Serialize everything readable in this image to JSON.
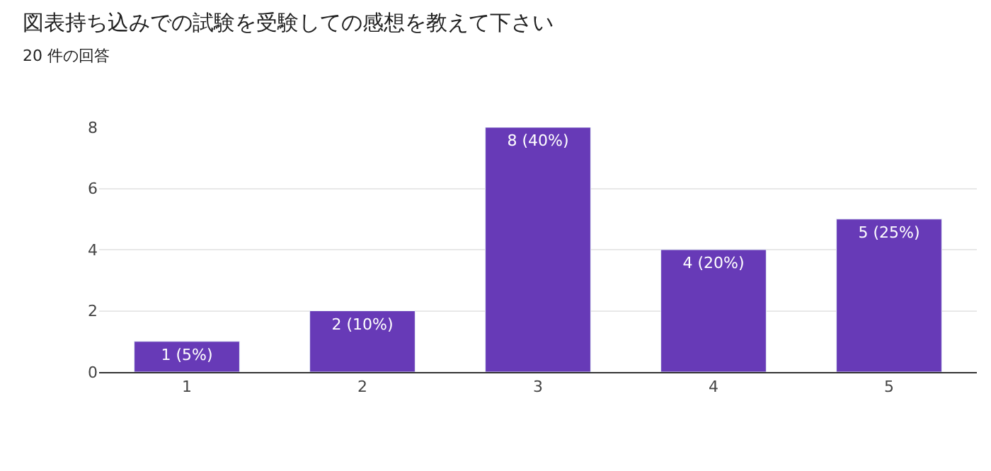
{
  "chart_data": {
    "type": "bar",
    "title": "図表持ち込みでの試験を受験しての感想を教えて下さい",
    "subtitle": "20 件の回答",
    "categories": [
      "1",
      "2",
      "3",
      "4",
      "5"
    ],
    "values": [
      1,
      2,
      8,
      4,
      5
    ],
    "value_labels": [
      "1 (5%)",
      "2 (10%)",
      "8 (40%)",
      "4 (20%)",
      "5 (25%)"
    ],
    "color": "#673ab7",
    "ylim": [
      0,
      8
    ],
    "yticks": [
      0,
      2,
      4,
      6,
      8
    ],
    "grid": "y"
  }
}
